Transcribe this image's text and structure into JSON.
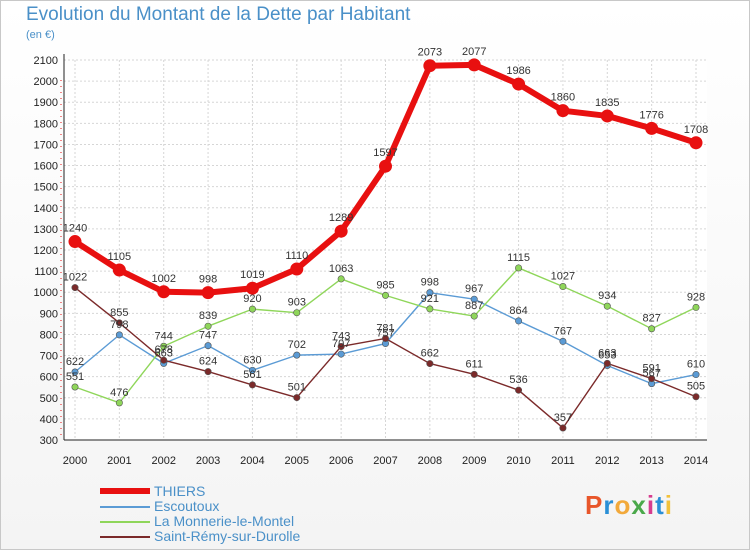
{
  "header": {
    "title": "Evolution du Montant de la Dette par Habitant",
    "unit": "(en €)"
  },
  "logo": {
    "text": "Proxiti",
    "colors": [
      "#e8562a",
      "#2a8fd6",
      "#f2a93b",
      "#4aa84a",
      "#d63c8e",
      "#2a8fd6",
      "#f2c13b"
    ]
  },
  "chart_data": {
    "type": "line",
    "title": "Evolution du Montant de la Dette par Habitant",
    "subtitle": "(en €)",
    "xlabel": "",
    "ylabel": "",
    "x": [
      "2000",
      "2001",
      "2002",
      "2003",
      "2004",
      "2005",
      "2006",
      "2007",
      "2008",
      "2009",
      "2010",
      "2011",
      "2012",
      "2013",
      "2014"
    ],
    "ylim": [
      300,
      2100
    ],
    "yticks": [
      300,
      400,
      500,
      600,
      700,
      800,
      900,
      1000,
      1100,
      1200,
      1300,
      1400,
      1500,
      1600,
      1700,
      1800,
      1900,
      2000,
      2100
    ],
    "grid": true,
    "legend_position": "bottom-left",
    "series": [
      {
        "name": "THIERS",
        "color": "#e81010",
        "values": [
          1240,
          1105,
          1002,
          998,
          1019,
          1110,
          1289,
          1597,
          2073,
          2077,
          1986,
          1860,
          1835,
          1776,
          1708
        ]
      },
      {
        "name": "Escoutoux",
        "color": "#5b9bd5",
        "values": [
          622,
          798,
          663,
          747,
          630,
          702,
          707,
          757,
          998,
          967,
          864,
          767,
          653,
          567,
          610
        ]
      },
      {
        "name": "La Monnerie-le-Montel",
        "color": "#8fd65a",
        "values": [
          551,
          476,
          744,
          839,
          920,
          903,
          1063,
          985,
          921,
          887,
          1115,
          1027,
          934,
          827,
          928
        ]
      },
      {
        "name": "Saint-Rémy-sur-Durolle",
        "color": "#7b2a2a",
        "values": [
          1022,
          855,
          678,
          624,
          561,
          501,
          743,
          781,
          662,
          611,
          536,
          357,
          663,
          591,
          505
        ]
      }
    ]
  }
}
